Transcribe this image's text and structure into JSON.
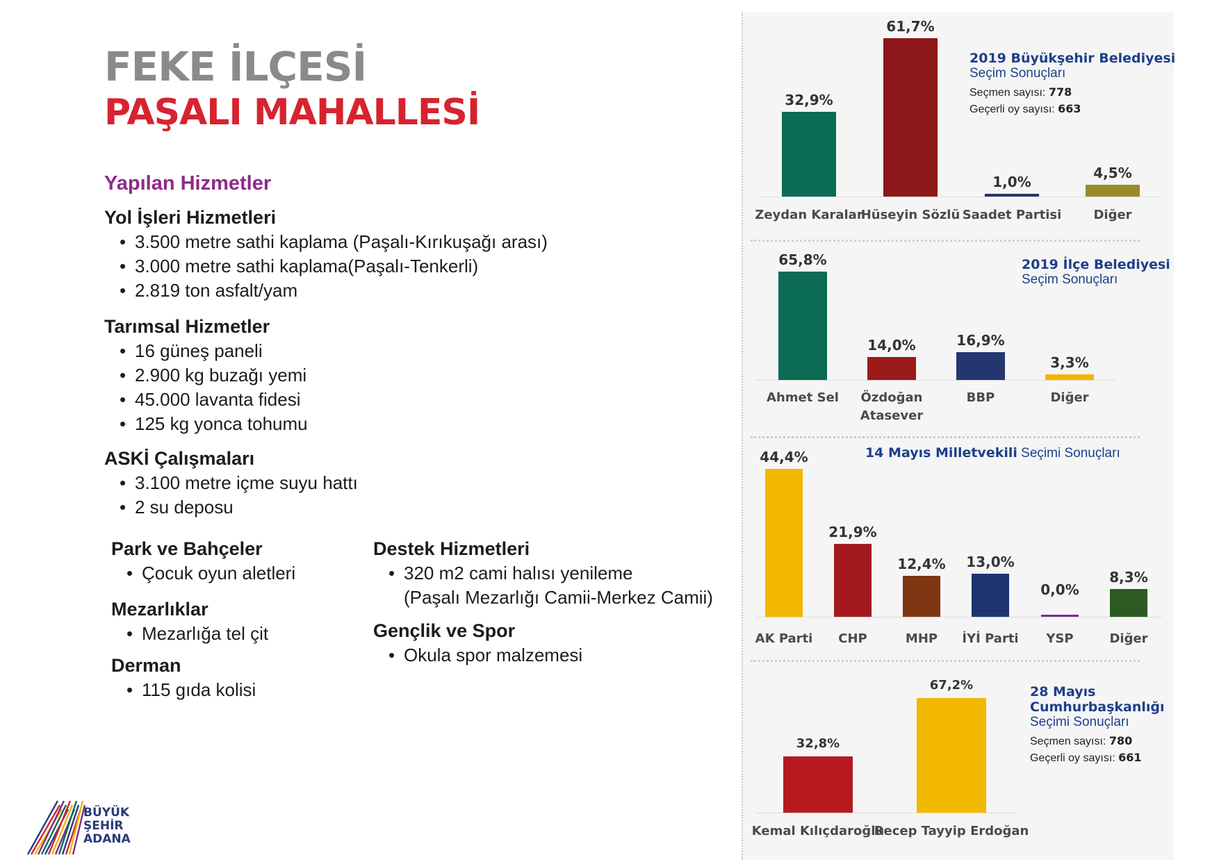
{
  "header": {
    "line1": "FEKE İLÇESİ",
    "line2": "PAŞALI MAHALLESİ"
  },
  "services": {
    "heading": "Yapılan Hizmetler",
    "sections": [
      {
        "title": "Yol İşleri Hizmetleri",
        "items": [
          "3.500 metre sathi kaplama (Paşalı-Kırıkuşağı arası)",
          "3.000 metre sathi kaplama(Paşalı-Tenkerli)",
          "2.819 ton asfalt/yam"
        ]
      },
      {
        "title": "Tarımsal Hizmetler",
        "items": [
          "16 güneş paneli",
          "2.900 kg buzağı yemi",
          "45.000 lavanta fidesi",
          "125 kg yonca tohumu"
        ]
      },
      {
        "title": "ASKİ Çalışmaları",
        "items": [
          "3.100 metre içme suyu hattı",
          "2 su deposu"
        ]
      },
      {
        "title": "Park ve Bahçeler",
        "items": [
          "Çocuk oyun aletleri"
        ]
      },
      {
        "title": "Mezarlıklar",
        "items": [
          "Mezarlığa tel çit"
        ]
      },
      {
        "title": "Derman",
        "items": [
          "115 gıda kolisi"
        ]
      },
      {
        "title": "Destek Hizmetleri",
        "items": [
          "320 m2 cami halısı yenileme"
        ],
        "continuation": "(Paşalı Mezarlığı Camii-Merkez Camii)"
      },
      {
        "title": "Gençlik ve Spor",
        "items": [
          "Okula spor malzemesi"
        ]
      }
    ]
  },
  "chart_data": [
    {
      "type": "bar",
      "title_bold": "2019 Büyükşehir Belediyesi",
      "title_sub": "Seçim Sonuçları",
      "stats": [
        {
          "label": "Seçmen sayısı: ",
          "value": "778"
        },
        {
          "label": "Geçerli oy sayısı: ",
          "value": "663"
        }
      ],
      "categories": [
        "Zeydan Karalar",
        "Hüseyin Sözlü",
        "Saadet Partisi",
        "Diğer"
      ],
      "values": [
        32.9,
        61.7,
        1.0,
        4.5
      ],
      "labels": [
        "32,9%",
        "61,7%",
        "1,0%",
        "4,5%"
      ],
      "colors": [
        "#0b6b55",
        "#8e1719",
        "#23366f",
        "#9a8a2b"
      ]
    },
    {
      "type": "bar",
      "title_bold": "2019 İlçe Belediyesi",
      "title_sub": "Seçim Sonuçları",
      "categories": [
        "Ahmet Sel",
        "Özdoğan Atasever",
        "BBP",
        "Diğer"
      ],
      "category_lines": [
        [
          "Ahmet Sel"
        ],
        [
          "Özdoğan",
          "Atasever"
        ],
        [
          "BBP"
        ],
        [
          "Diğer"
        ]
      ],
      "values": [
        65.8,
        14.0,
        16.9,
        3.3
      ],
      "labels": [
        "65,8%",
        "14,0%",
        "16,9%",
        "3,3%"
      ],
      "colors": [
        "#0b6b55",
        "#9a1a1a",
        "#23366f",
        "#f2b600"
      ]
    },
    {
      "type": "bar",
      "title_bold": "14 Mayıs Milletvekili",
      "title_sub": " Seçimi Sonuçları",
      "categories": [
        "AK Parti",
        "CHP",
        "MHP",
        "İYİ Parti",
        "YSP",
        "Diğer"
      ],
      "values": [
        44.4,
        21.9,
        12.4,
        13.0,
        0.0,
        8.3
      ],
      "labels": [
        "44,4%",
        "21,9%",
        "12,4%",
        "13,0%",
        "0,0%",
        "8,3%"
      ],
      "colors": [
        "#f2b800",
        "#a3191f",
        "#7e3712",
        "#1e3470",
        "#7b2d8b",
        "#2c5a22"
      ]
    },
    {
      "type": "bar",
      "title_bold_lines": [
        "28 Mayıs",
        "Cumhurbaşkanlığı"
      ],
      "title_sub": "Seçimi Sonuçları",
      "stats": [
        {
          "label": "Seçmen sayısı: ",
          "value": "780"
        },
        {
          "label": "Geçerli oy sayısı: ",
          "value": "661"
        }
      ],
      "categories": [
        "Kemal Kılıçdaroğlu",
        "Recep Tayyip Erdoğan"
      ],
      "values": [
        32.8,
        67.2
      ],
      "labels": [
        "32,8%",
        "67,2%"
      ],
      "colors": [
        "#b8191f",
        "#f2b800"
      ]
    }
  ],
  "logo": {
    "lines": [
      "BÜYÜK",
      "ŞEHİR",
      "ADANA"
    ],
    "colors": [
      "#1d3f8a",
      "#d7232f",
      "#f2b600",
      "#7b2d8b",
      "#0b6b55"
    ]
  }
}
